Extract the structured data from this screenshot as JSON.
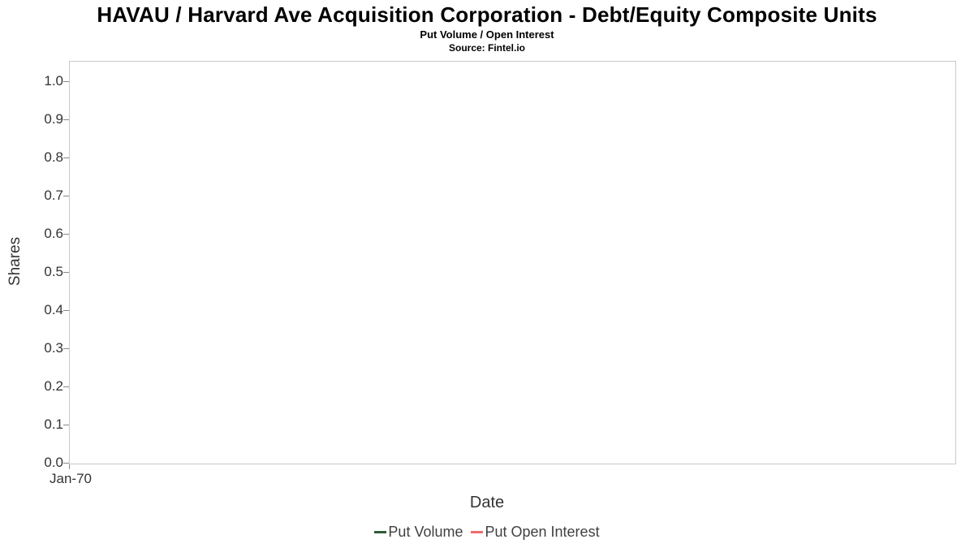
{
  "title": "HAVAU / Harvard Ave Acquisition Corporation - Debt/Equity Composite Units",
  "subtitle": "Put Volume / Open Interest",
  "source": "Source: Fintel.io",
  "chart_data": {
    "type": "line",
    "title": "HAVAU / Harvard Ave Acquisition Corporation - Debt/Equity Composite Units",
    "subtitle": "Put Volume / Open Interest",
    "source": "Source: Fintel.io",
    "xlabel": "Date",
    "ylabel": "Shares",
    "ylim": [
      0.0,
      1.0
    ],
    "yticks": [
      "1.0",
      "0.9",
      "0.8",
      "0.7",
      "0.6",
      "0.5",
      "0.4",
      "0.3",
      "0.2",
      "0.1",
      "0.0"
    ],
    "xticks": [
      "Jan-70"
    ],
    "x": [],
    "series": [
      {
        "name": "Put Volume",
        "color": "#2f5d38",
        "values": []
      },
      {
        "name": "Put Open Interest",
        "color": "#f26b6b",
        "values": []
      }
    ],
    "grid": false,
    "legend_position": "bottom",
    "note": "plot area is empty - no data points rendered"
  },
  "legend": {
    "items": [
      {
        "label": "Put Volume",
        "color": "#2f5d38"
      },
      {
        "label": "Put Open Interest",
        "color": "#f26b6b"
      }
    ]
  }
}
